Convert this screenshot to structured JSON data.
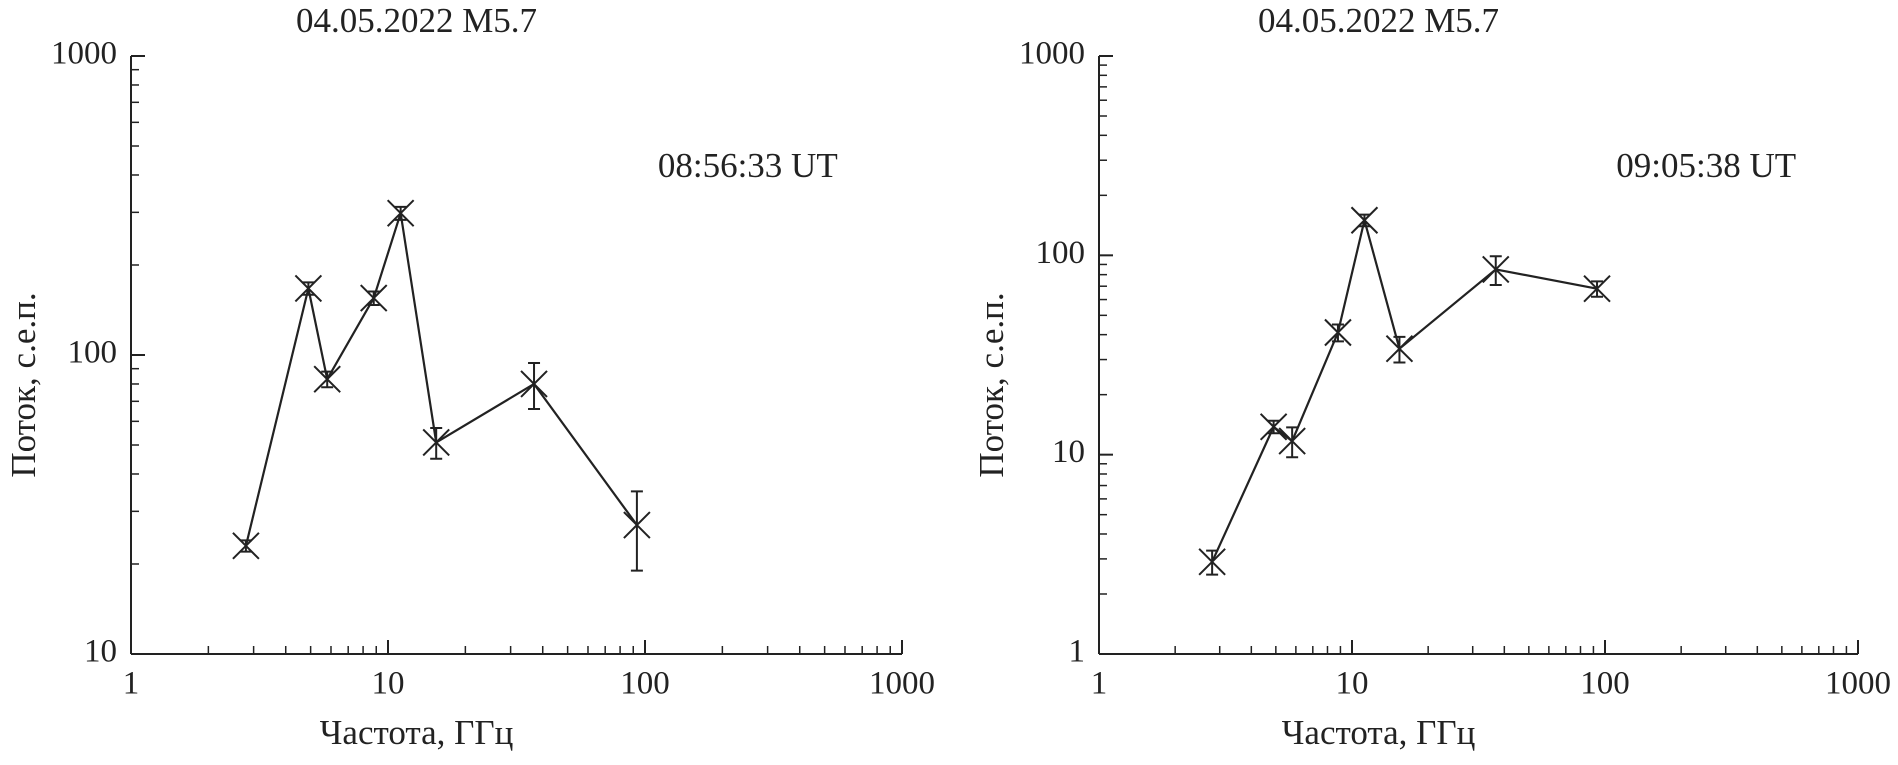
{
  "chart_data": [
    {
      "type": "scatter",
      "title": "04.05.2022 M5.7",
      "annotation": "08:56:33 UT",
      "xlabel": "Частота, ГГц",
      "ylabel": "Поток, с.е.п.",
      "log_x": true,
      "log_y": true,
      "color": "#222",
      "x": [
        2.8,
        4.9,
        5.8,
        8.8,
        11.2,
        15.4,
        37,
        93
      ],
      "values": [
        23,
        167,
        83,
        155,
        298,
        51,
        80,
        27
      ],
      "errors": [
        1,
        8,
        5,
        8,
        15,
        6,
        14,
        8
      ],
      "xlim": [
        1,
        1000
      ],
      "xticks": [
        1,
        10,
        100,
        1000
      ],
      "xminorticks": [
        2,
        3,
        4,
        5,
        6,
        7,
        8,
        9,
        20,
        30,
        40,
        50,
        60,
        70,
        80,
        90,
        200,
        300,
        400,
        500,
        600,
        700,
        800,
        900
      ],
      "ylim": [
        10,
        1000
      ],
      "yticks": [
        10,
        100,
        1000
      ],
      "yminorticks": [
        20,
        30,
        40,
        50,
        60,
        70,
        80,
        90,
        200,
        300,
        400,
        500,
        600,
        700,
        800,
        900
      ]
    },
    {
      "type": "scatter",
      "title": "04.05.2022 M5.7",
      "annotation": "09:05:38 UT",
      "xlabel": "Частота, ГГц",
      "ylabel": "Поток, с.е.п.",
      "log_x": true,
      "log_y": true,
      "color": "#222",
      "x": [
        2.8,
        4.9,
        5.8,
        8.8,
        11.2,
        15.4,
        37,
        93
      ],
      "values": [
        2.9,
        13.8,
        11.7,
        41,
        150,
        34,
        85,
        68
      ],
      "errors": [
        0.4,
        1,
        2,
        4,
        10,
        5,
        14,
        6
      ],
      "xlim": [
        1,
        1000
      ],
      "xticks": [
        1,
        10,
        100,
        1000
      ],
      "xminorticks": [
        2,
        3,
        4,
        5,
        6,
        7,
        8,
        9,
        20,
        30,
        40,
        50,
        60,
        70,
        80,
        90,
        200,
        300,
        400,
        500,
        600,
        700,
        800,
        900
      ],
      "ylim": [
        1,
        1000
      ],
      "yticks": [
        1,
        10,
        100,
        1000
      ],
      "yminorticks": [
        2,
        3,
        4,
        5,
        6,
        7,
        8,
        9,
        20,
        30,
        40,
        50,
        60,
        70,
        80,
        90,
        200,
        300,
        400,
        500,
        600,
        700,
        800,
        900
      ]
    }
  ]
}
